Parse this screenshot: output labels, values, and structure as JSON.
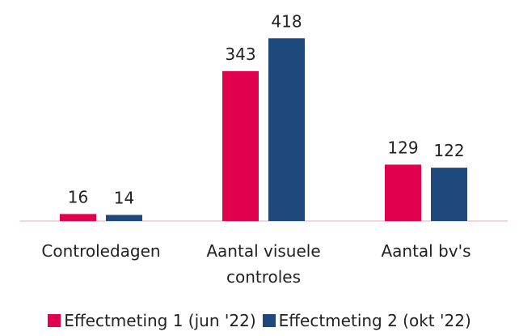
{
  "chart_data": {
    "type": "bar",
    "categories": [
      "Controledagen",
      "Aantal visuele controles",
      "Aantal bv's"
    ],
    "series": [
      {
        "name": "Effectmeting 1 (jun '22)",
        "color": "#e0004d",
        "values": [
          16,
          343,
          129
        ]
      },
      {
        "name": "Effectmeting 2 (okt '22)",
        "color": "#1f497d",
        "values": [
          14,
          418,
          122
        ]
      }
    ],
    "ylim": [
      0,
      500
    ],
    "legend": "bottom"
  }
}
